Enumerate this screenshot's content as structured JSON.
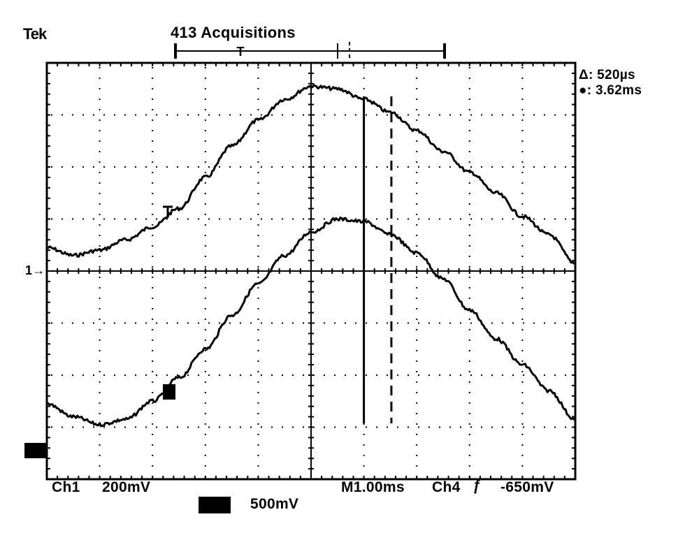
{
  "brand": "Tek",
  "acquisition_status": "413 Acquisitions",
  "trigger_position_marker": "T",
  "cursor_readout": {
    "delta_symbol": "Δ",
    "delta_value": ": 520µs",
    "absolute_symbol": "●",
    "absolute_value": ": 3.62ms"
  },
  "ch1_ground_marker": "1→",
  "footer": {
    "ch1_label": "Ch1",
    "ch1_scale": "200mV",
    "ch4_scale": "500mV",
    "timebase": "M1.00ms",
    "trigger_source": "Ch4",
    "trigger_slope": "ƒ",
    "trigger_level": "-650mV"
  },
  "colors": {
    "trace": "#000000",
    "grid": "#000000",
    "background": "#ffffff"
  },
  "chart_data": {
    "type": "line",
    "x_units": "ms",
    "y_units": "div",
    "grid": true,
    "xlim": [
      0,
      10
    ],
    "ylim": [
      -4,
      4
    ],
    "divisions": {
      "x": 10,
      "y": 8
    },
    "series": [
      {
        "channel": "Ch1",
        "x": [
          0,
          0.5,
          1.0,
          1.5,
          2.0,
          2.5,
          3.0,
          3.5,
          4.0,
          4.5,
          5.0,
          5.5,
          6.0,
          6.5,
          7.0,
          7.5,
          8.0,
          8.5,
          9.0,
          9.5,
          10.0
        ],
        "y": [
          0.45,
          0.3,
          0.4,
          0.6,
          0.85,
          1.2,
          1.8,
          2.4,
          2.9,
          3.3,
          3.55,
          3.5,
          3.3,
          3.05,
          2.7,
          2.3,
          1.9,
          1.5,
          1.05,
          0.7,
          0.15
        ]
      },
      {
        "channel": "Ch4",
        "x": [
          0,
          0.5,
          1.0,
          1.5,
          2.0,
          2.5,
          3.0,
          3.5,
          4.0,
          4.5,
          5.0,
          5.5,
          6.0,
          6.5,
          7.0,
          7.5,
          8.0,
          8.5,
          9.0,
          9.5,
          10.0
        ],
        "y": [
          -2.55,
          -2.8,
          -2.95,
          -2.85,
          -2.5,
          -2.05,
          -1.5,
          -0.85,
          -0.25,
          0.3,
          0.75,
          1.0,
          0.95,
          0.7,
          0.35,
          -0.15,
          -0.75,
          -1.3,
          -1.8,
          -2.3,
          -2.85
        ]
      }
    ],
    "cursors": [
      {
        "style": "solid",
        "x": 6.0
      },
      {
        "style": "dashed",
        "x": 6.52
      }
    ]
  }
}
